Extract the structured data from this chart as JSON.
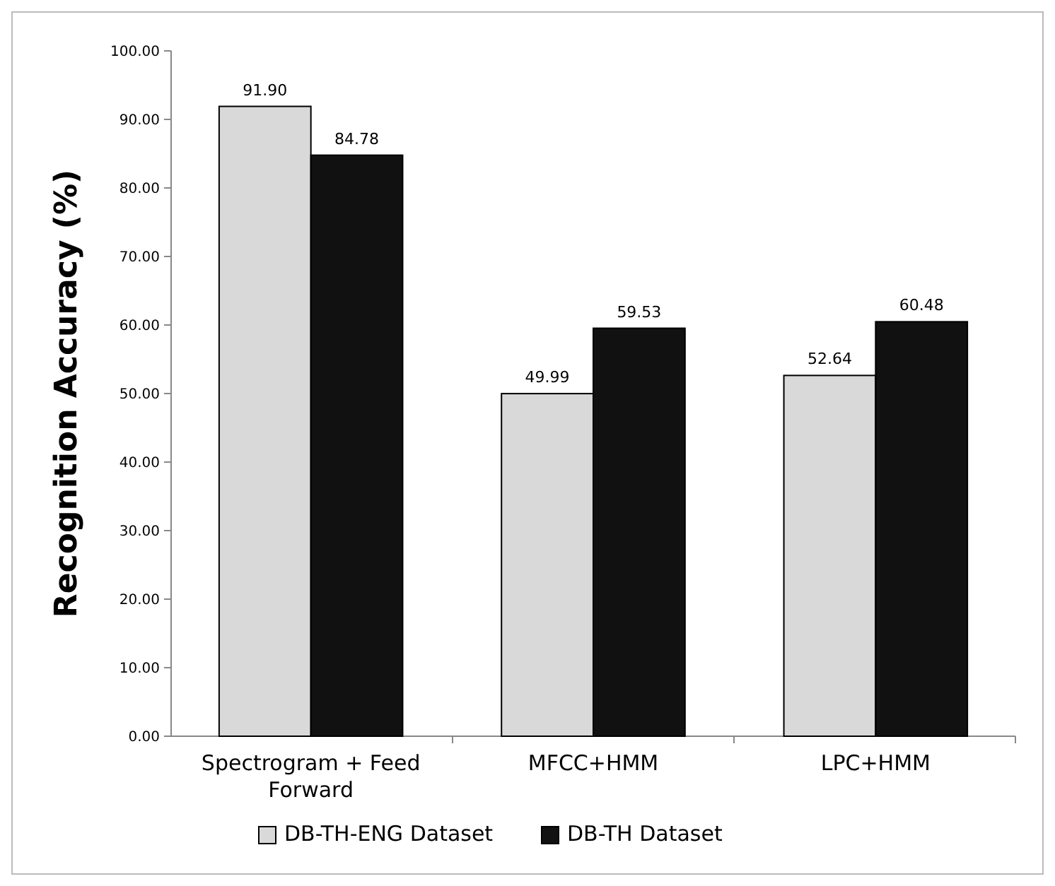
{
  "chart_data": {
    "type": "bar",
    "ylabel": "Recognition Accuracy (%)",
    "categories": [
      "Spectrogram + Feed Forward",
      "MFCC+HMM",
      "LPC+HMM"
    ],
    "series": [
      {
        "name": "DB-TH-ENG Dataset",
        "color": "#d9d9d9",
        "values": [
          91.9,
          49.99,
          52.64
        ],
        "value_labels": [
          "91.90",
          "49.99",
          "52.64"
        ]
      },
      {
        "name": "DB-TH Dataset",
        "color": "#111111",
        "values": [
          84.78,
          59.53,
          60.48
        ],
        "value_labels": [
          "84.78",
          "59.53",
          "60.48"
        ]
      }
    ],
    "ylim": [
      0,
      100
    ],
    "yticks": [
      {
        "value": 0,
        "label": "0.00"
      },
      {
        "value": 10,
        "label": "10.00"
      },
      {
        "value": 20,
        "label": "20.00"
      },
      {
        "value": 30,
        "label": "30.00"
      },
      {
        "value": 40,
        "label": "40.00"
      },
      {
        "value": 50,
        "label": "50.00"
      },
      {
        "value": 60,
        "label": "60.00"
      },
      {
        "value": 70,
        "label": "70.00"
      },
      {
        "value": 80,
        "label": "80.00"
      },
      {
        "value": 90,
        "label": "90.00"
      },
      {
        "value": 100,
        "label": "100.00"
      }
    ],
    "legend": "bottom",
    "grid": false
  }
}
